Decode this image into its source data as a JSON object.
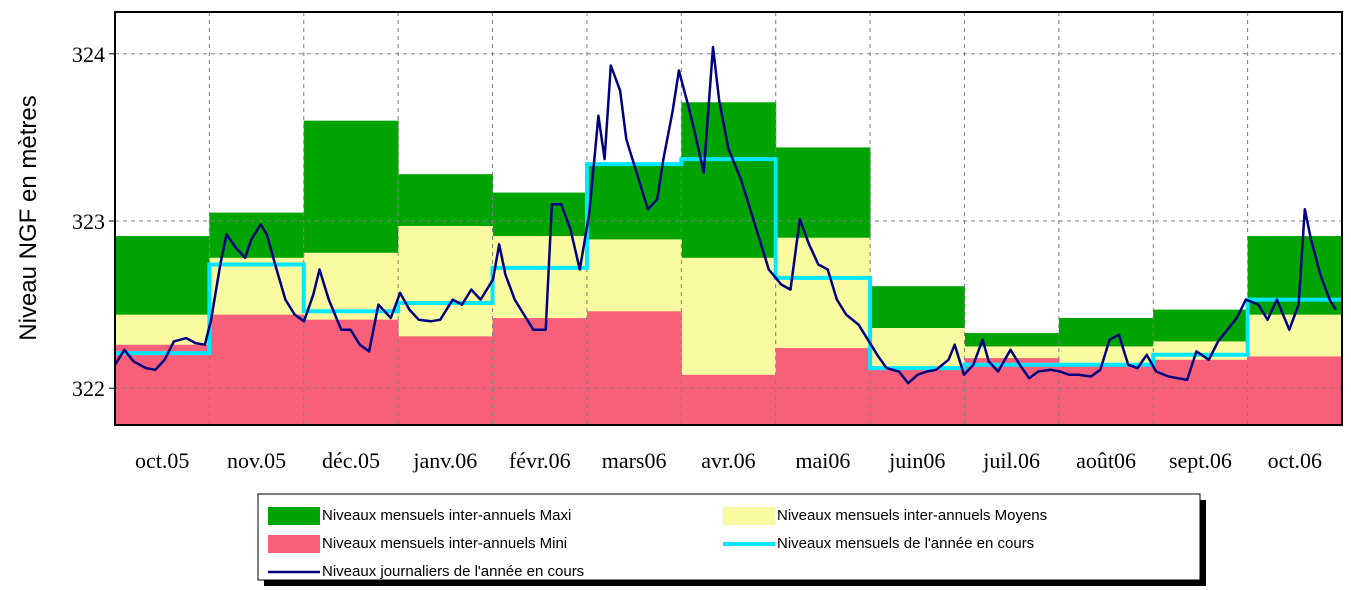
{
  "chart_data": {
    "type": "line",
    "y_label": "Niveau NGF en mètres",
    "categories": [
      "oct.05",
      "nov.05",
      "déc.05",
      "janv.06",
      "févr.06",
      "mars06",
      "avr.06",
      "mai06",
      "juin06",
      "juil.06",
      "août06",
      "sept.06",
      "oct.06"
    ],
    "ylim": [
      321.78,
      324.25
    ],
    "yticks": [
      322,
      323,
      324
    ],
    "xlim": [
      0,
      396
    ],
    "grid": true,
    "series": [
      {
        "name": "Niveaux mensuels inter-annuels Maxi",
        "type": "step-area",
        "color": "#00a400",
        "values": [
          322.91,
          323.05,
          323.6,
          323.28,
          323.17,
          323.35,
          323.71,
          323.44,
          322.61,
          322.33,
          322.42,
          322.47,
          322.91
        ]
      },
      {
        "name": "Niveaux mensuels inter-annuels Moyens",
        "type": "step-area",
        "color": "#fafaa0",
        "values": [
          322.44,
          322.78,
          322.81,
          322.97,
          322.91,
          322.89,
          322.78,
          322.9,
          322.36,
          322.25,
          322.25,
          322.28,
          322.44
        ]
      },
      {
        "name": "Niveaux mensuels inter-annuels Mini",
        "type": "step-area",
        "color": "#f8607a",
        "values": [
          322.26,
          322.44,
          322.41,
          322.31,
          322.42,
          322.46,
          322.08,
          322.24,
          322.11,
          322.18,
          322.14,
          322.17,
          322.19
        ]
      },
      {
        "name": "Niveaux mensuels de l'année en cours",
        "type": "step",
        "color": "#00e8ff",
        "values": [
          322.21,
          322.74,
          322.46,
          322.51,
          322.72,
          323.34,
          323.37,
          322.66,
          322.12,
          322.14,
          322.14,
          322.2,
          322.53
        ]
      },
      {
        "name": "Niveaux journaliers de l'année en cours",
        "type": "line",
        "color": "#000080",
        "x": [
          0,
          3,
          6,
          10,
          13,
          16,
          19,
          23,
          26,
          29,
          31,
          34,
          36,
          39,
          42,
          44,
          47,
          49,
          52,
          55,
          58,
          61,
          64,
          66,
          69,
          73,
          76,
          79,
          82,
          85,
          89,
          92,
          95,
          98,
          102,
          105,
          109,
          112,
          115,
          118,
          122,
          124,
          126,
          129,
          132,
          135,
          139,
          141,
          144,
          147,
          150,
          153,
          155,
          156,
          158,
          160,
          163,
          165,
          169,
          172,
          175,
          177,
          180,
          182,
          185,
          187,
          190,
          193,
          195,
          198,
          202,
          205,
          208,
          211,
          215,
          218,
          221,
          224,
          227,
          230,
          233,
          236,
          240,
          243,
          246,
          249,
          253,
          256,
          259,
          262,
          265,
          269,
          271,
          274,
          277,
          280,
          282,
          285,
          289,
          292,
          295,
          298,
          302,
          305,
          308,
          311,
          315,
          318,
          321,
          324,
          327,
          330,
          333,
          336,
          340,
          343,
          346,
          349,
          353,
          356,
          359,
          362,
          365,
          369,
          372,
          375,
          379,
          382,
          384,
          386,
          389,
          392,
          394
        ],
        "values": [
          322.14,
          322.23,
          322.16,
          322.12,
          322.11,
          322.17,
          322.28,
          322.3,
          322.27,
          322.26,
          322.41,
          322.74,
          322.92,
          322.84,
          322.78,
          322.89,
          322.98,
          322.92,
          322.72,
          322.53,
          322.44,
          322.4,
          322.56,
          322.71,
          322.53,
          322.35,
          322.35,
          322.26,
          322.22,
          322.5,
          322.42,
          322.57,
          322.47,
          322.41,
          322.4,
          322.41,
          322.53,
          322.5,
          322.59,
          322.53,
          322.65,
          322.86,
          322.68,
          322.53,
          322.44,
          322.35,
          322.35,
          323.1,
          323.1,
          322.95,
          322.71,
          323.04,
          323.43,
          323.63,
          323.37,
          323.93,
          323.78,
          323.49,
          323.25,
          323.07,
          323.13,
          323.37,
          323.66,
          323.9,
          323.69,
          323.54,
          323.29,
          324.04,
          323.72,
          323.43,
          323.25,
          323.07,
          322.89,
          322.71,
          322.62,
          322.59,
          323.01,
          322.86,
          322.74,
          322.71,
          322.53,
          322.44,
          322.38,
          322.29,
          322.2,
          322.12,
          322.1,
          322.03,
          322.08,
          322.1,
          322.11,
          322.17,
          322.26,
          322.08,
          322.14,
          322.29,
          322.16,
          322.1,
          322.23,
          322.14,
          322.06,
          322.1,
          322.11,
          322.1,
          322.08,
          322.08,
          322.07,
          322.11,
          322.29,
          322.32,
          322.14,
          322.12,
          322.2,
          322.1,
          322.07,
          322.06,
          322.05,
          322.22,
          322.17,
          322.28,
          322.35,
          322.42,
          322.53,
          322.5,
          322.41,
          322.53,
          322.35,
          322.5,
          323.07,
          322.89,
          322.68,
          322.53,
          322.47
        ]
      }
    ]
  }
}
